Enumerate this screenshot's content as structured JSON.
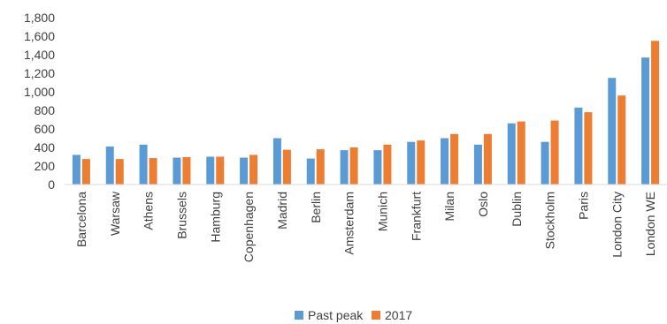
{
  "chart_data": {
    "type": "bar",
    "categories": [
      "Barcelona",
      "Warsaw",
      "Athens",
      "Brussels",
      "Hamburg",
      "Copenhagen",
      "Madrid",
      "Berlin",
      "Amsterdam",
      "Munich",
      "Frankfurt",
      "Milan",
      "Oslo",
      "Dublin",
      "Stockholm",
      "Paris",
      "London City",
      "London WE"
    ],
    "series": [
      {
        "name": "Past peak",
        "color": "#5B9BD5",
        "values": [
          320,
          410,
          430,
          290,
          300,
          290,
          500,
          280,
          370,
          370,
          460,
          500,
          430,
          660,
          460,
          830,
          1150,
          1370
        ]
      },
      {
        "name": "2017",
        "color": "#ED7D31",
        "values": [
          275,
          275,
          285,
          295,
          300,
          320,
          375,
          380,
          400,
          430,
          475,
          545,
          545,
          680,
          690,
          780,
          960,
          1550
        ]
      }
    ],
    "y_ticks": [
      "0",
      "200",
      "400",
      "600",
      "800",
      "1,000",
      "1,200",
      "1,400",
      "1,600",
      "1,800"
    ],
    "ylim": [
      0,
      1800
    ],
    "grid": false,
    "legend_position": "bottom"
  }
}
